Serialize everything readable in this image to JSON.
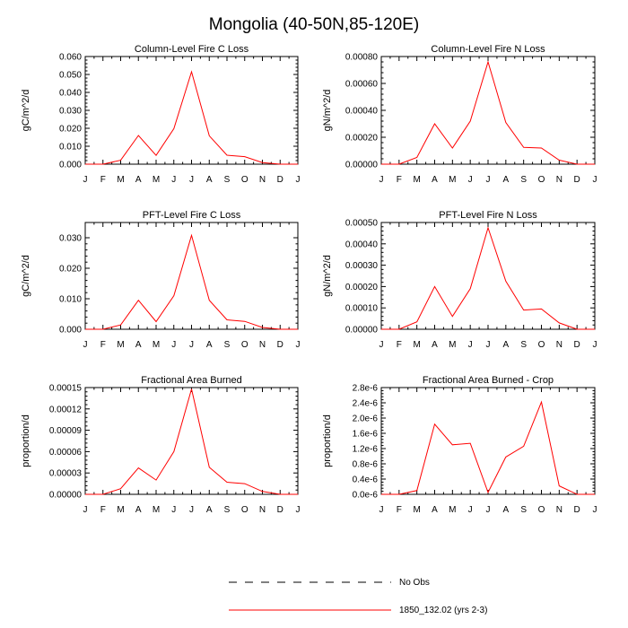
{
  "figure": {
    "title": "Mongolia (40-50N,85-120E)"
  },
  "legend": {
    "entries": [
      {
        "label": "No Obs",
        "style": "dashed",
        "color": "#000000"
      },
      {
        "label": "1850_132.02 (yrs 2-3)",
        "style": "solid",
        "color": "#ff0000"
      }
    ]
  },
  "chart_data": [
    {
      "type": "line",
      "title": "Column-Level Fire C Loss",
      "xlabel": "",
      "ylabel": "gC/m^2/d",
      "x_tick_labels": [
        "J",
        "F",
        "M",
        "A",
        "M",
        "J",
        "J",
        "A",
        "S",
        "O",
        "N",
        "D",
        "J"
      ],
      "ylim": [
        0,
        0.06
      ],
      "yticks": [
        "0.000",
        "0.010",
        "0.020",
        "0.030",
        "0.040",
        "0.050",
        "0.060"
      ],
      "ytick_values": [
        0,
        0.01,
        0.02,
        0.03,
        0.04,
        0.05,
        0.06
      ],
      "series": [
        {
          "color": "#ff0000",
          "values": [
            0.0,
            0.0,
            0.0022,
            0.016,
            0.0049,
            0.0198,
            0.0515,
            0.0158,
            0.005,
            0.0042,
            0.0009,
            0.0,
            0.0
          ]
        }
      ]
    },
    {
      "type": "line",
      "title": "Column-Level Fire N Loss",
      "xlabel": "",
      "ylabel": "gN/m^2/d",
      "x_tick_labels": [
        "J",
        "F",
        "M",
        "A",
        "M",
        "J",
        "J",
        "A",
        "S",
        "O",
        "N",
        "D",
        "J"
      ],
      "ylim": [
        0,
        0.0008
      ],
      "yticks": [
        "0.00000",
        "0.00020",
        "0.00040",
        "0.00060",
        "0.00080"
      ],
      "ytick_values": [
        0,
        0.0002,
        0.0004,
        0.0006,
        0.0008
      ],
      "series": [
        {
          "color": "#ff0000",
          "values": [
            0.0,
            0.0,
            5e-05,
            0.0003,
            0.00012,
            0.00032,
            0.00076,
            0.00031,
            0.000125,
            0.00012,
            3e-05,
            0.0,
            0.0
          ]
        }
      ]
    },
    {
      "type": "line",
      "title": "PFT-Level Fire C Loss",
      "xlabel": "",
      "ylabel": "gC/m^2/d",
      "x_tick_labels": [
        "J",
        "F",
        "M",
        "A",
        "M",
        "J",
        "J",
        "A",
        "S",
        "O",
        "N",
        "D",
        "J"
      ],
      "ylim": [
        0,
        0.035
      ],
      "yticks": [
        "0.000",
        "0.010",
        "0.020",
        "0.030"
      ],
      "ytick_values": [
        0,
        0.01,
        0.02,
        0.03
      ],
      "series": [
        {
          "color": "#ff0000",
          "values": [
            0.0,
            0.0,
            0.0014,
            0.0095,
            0.0025,
            0.011,
            0.0308,
            0.0095,
            0.0031,
            0.0026,
            0.0006,
            0.0,
            0.0
          ]
        }
      ]
    },
    {
      "type": "line",
      "title": "PFT-Level Fire N Loss",
      "xlabel": "",
      "ylabel": "gN/m^2/d",
      "x_tick_labels": [
        "J",
        "F",
        "M",
        "A",
        "M",
        "J",
        "J",
        "A",
        "S",
        "O",
        "N",
        "D",
        "J"
      ],
      "ylim": [
        0,
        0.0005
      ],
      "yticks": [
        "0.00000",
        "0.00010",
        "0.00020",
        "0.00030",
        "0.00040",
        "0.00050"
      ],
      "ytick_values": [
        0,
        0.0001,
        0.0002,
        0.0003,
        0.0004,
        0.0005
      ],
      "series": [
        {
          "color": "#ff0000",
          "values": [
            0.0,
            0.0,
            3.5e-05,
            0.0002,
            6e-05,
            0.00019,
            0.000475,
            0.000225,
            9e-05,
            9.5e-05,
            3e-05,
            0.0,
            0.0
          ]
        }
      ]
    },
    {
      "type": "line",
      "title": "Fractional Area Burned",
      "xlabel": "",
      "ylabel": "proportion/d",
      "x_tick_labels": [
        "J",
        "F",
        "M",
        "A",
        "M",
        "J",
        "J",
        "A",
        "S",
        "O",
        "N",
        "D",
        "J"
      ],
      "ylim": [
        0,
        0.00015
      ],
      "yticks": [
        "0.00000",
        "0.00003",
        "0.00006",
        "0.00009",
        "0.00012",
        "0.00015"
      ],
      "ytick_values": [
        0,
        3e-05,
        6e-05,
        9e-05,
        0.00012,
        0.00015
      ],
      "series": [
        {
          "color": "#ff0000",
          "values": [
            0.0,
            0.0,
            8e-06,
            3.7e-05,
            2e-05,
            6e-05,
            0.000148,
            3.8e-05,
            1.7e-05,
            1.5e-05,
            4e-06,
            0.0,
            0.0
          ]
        }
      ]
    },
    {
      "type": "line",
      "title": "Fractional Area Burned - Crop",
      "xlabel": "",
      "ylabel": "proportion/d",
      "x_tick_labels": [
        "J",
        "F",
        "M",
        "A",
        "M",
        "J",
        "J",
        "A",
        "S",
        "O",
        "N",
        "D",
        "J"
      ],
      "ylim": [
        0,
        2.8e-06
      ],
      "yticks": [
        "0.0e-6",
        "0.4e-6",
        "0.8e-6",
        "1.2e-6",
        "1.6e-6",
        "2.0e-6",
        "2.4e-6",
        "2.8e-6"
      ],
      "ytick_values": [
        0,
        4e-07,
        8e-07,
        1.2e-06,
        1.6e-06,
        2e-06,
        2.4e-06,
        2.8e-06
      ],
      "series": [
        {
          "color": "#ff0000",
          "values": [
            0.0,
            0.0,
            1e-07,
            1.84e-06,
            1.3e-06,
            1.34e-06,
            5e-08,
            9.8e-07,
            1.26e-06,
            2.42e-06,
            2.2e-07,
            0.0,
            0.0
          ]
        }
      ]
    }
  ]
}
